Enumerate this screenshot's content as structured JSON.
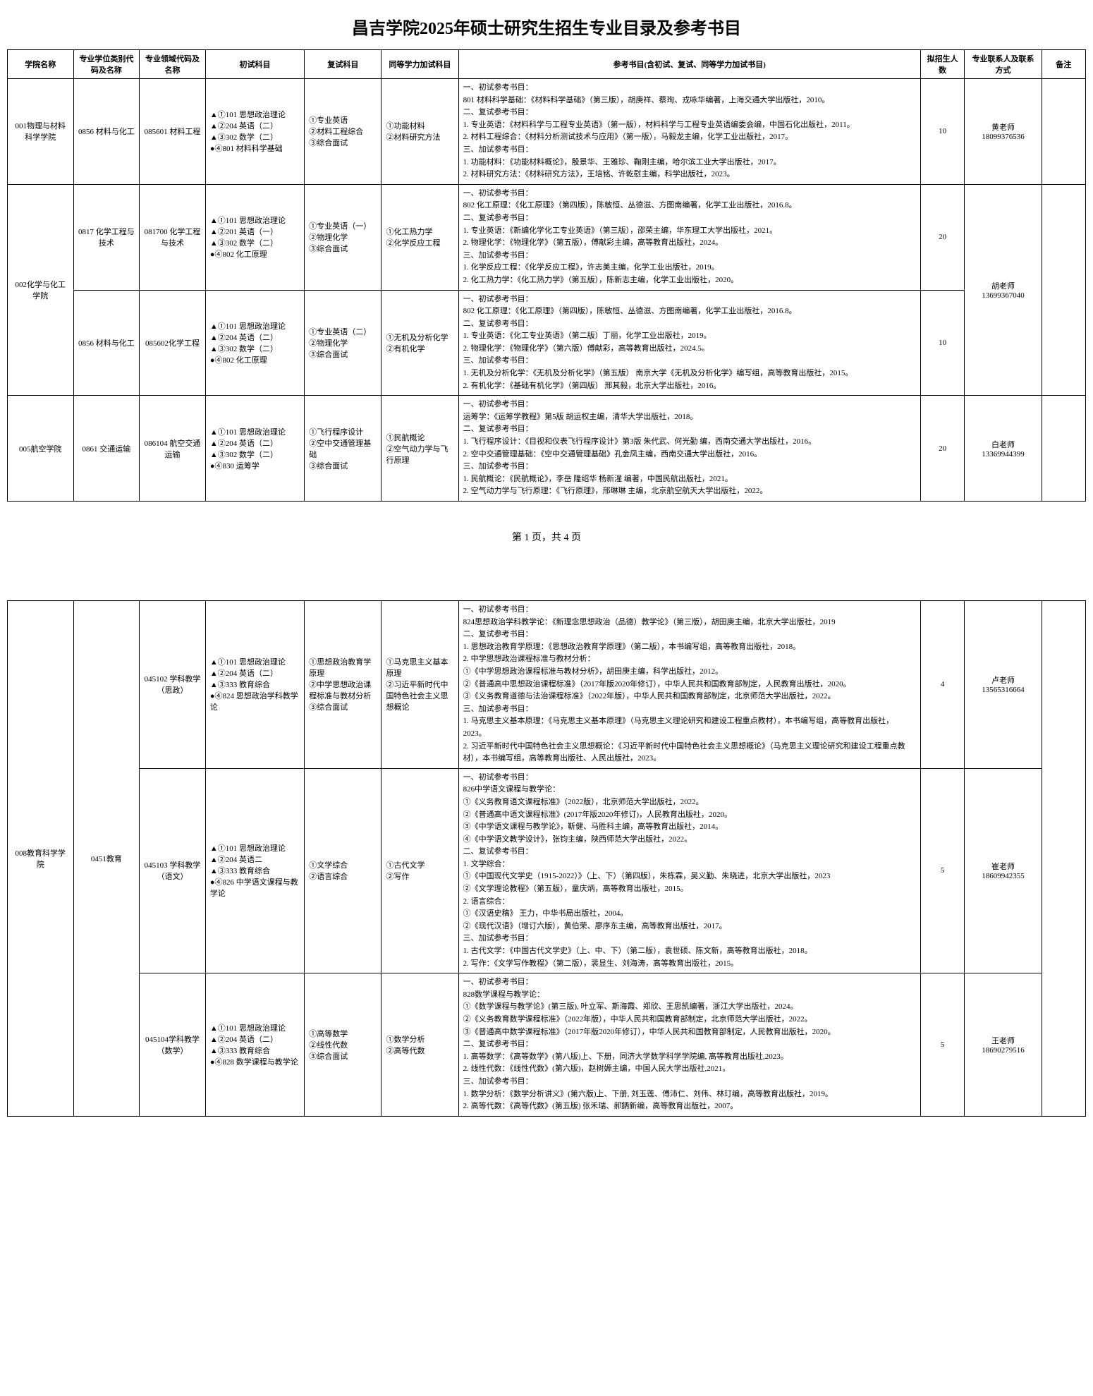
{
  "title": "昌吉学院2025年硕士研究生招生专业目录及参考书目",
  "pager": "第 1 页，共 4 页",
  "headers": {
    "school": "学院名称",
    "degree_type": "专业学位类别代码及名称",
    "field": "专业领域代码及名称",
    "prelim": "初试科目",
    "retest": "复试科目",
    "extra": "同等学力加试科目",
    "refs": "参考书目(含初试、复试、同等学力加试书目)",
    "plan": "拟招生人数",
    "contact": "专业联系人及联系方式",
    "note": "备注"
  },
  "rows": [
    {
      "school": "001物理与材料科学学院",
      "degree": "0856 材料与化工",
      "field": "085601 材料工程",
      "prelim": "▲①101 思想政治理论\n▲②204 英语（二）\n▲③302 数学（二）\n●④801 材料科学基础",
      "retest": "①专业英语\n②材料工程综合\n③综合面试",
      "extra": "①功能材料\n②材料研究方法",
      "refs": "一、初试参考书目：\n801 材料科学基础：《材料科学基础》（第三版），胡庚祥、蔡珣、戎咏华编著，上海交通大学出版社，2010。\n二、复试参考书目：\n1. 专业英语：《材料科学与工程专业英语》（第一版），材料科学与工程专业英语编委会编，中国石化出版社，2011。\n2. 材料工程综合：《材料分析测试技术与应用》（第一版），马毅龙主编，化学工业出版社，2017。\n三、加试参考书目：\n1. 功能材料：《功能材料概论》，殷景华、王雅珍、鞠刚主编，哈尔滨工业大学出版社，2017。\n2. 材料研究方法：《材料研究方法》，王培铭、许乾慰主编，科学出版社，2023。",
      "plan": "10",
      "contact": "黄老师\n18099376536",
      "note": ""
    },
    {
      "school": "002化学与化工学院",
      "degree": "0817 化学工程与技术",
      "field": "081700 化学工程与技术",
      "prelim": "▲①101 思想政治理论\n▲②201 英语（一）\n▲③302 数学（二）\n●④802 化工原理",
      "retest": "①专业英语（一）\n②物理化学\n③综合面试",
      "extra": "①化工热力学\n②化学反应工程",
      "refs": "一、初试参考书目：\n802 化工原理：《化工原理》（第四版），陈敏恒、丛德滋、方图南编著，化学工业出版社，2016.8。\n二、复试参考书目：\n1. 专业英语：《新编化学化工专业英语》（第三版），邵荣主编，华东理工大学出版社，2021。\n2. 物理化学：《物理化学》（第五版），傅献彩主编，高等教育出版社，2024。\n三、加试参考书目：\n1. 化学反应工程：《化学反应工程》，许志美主编，化学工业出版社，2019。\n2. 化工热力学：《化工热力学》（第五版），陈新志主编，化学工业出版社，2020。",
      "plan": "20",
      "contact": "胡老师\n13699367040",
      "note": ""
    },
    {
      "school": "",
      "degree": "0856 材料与化工",
      "field": "085602化学工程",
      "prelim": "▲①101 思想政治理论\n▲②204 英语（二）\n▲③302 数学（二）\n●④802 化工原理",
      "retest": "①专业英语（二）\n②物理化学\n③综合面试",
      "extra": "①无机及分析化学\n②有机化学",
      "refs": "一、初试参考书目：\n802 化工原理：《化工原理》（第四版），陈敏恒、丛德滋、方图南编著，化学工业出版社，2016.8。\n二、复试参考书目：\n1. 专业英语：《化工专业英语》（第二版）丁丽，化学工业出版社，2019。\n2. 物理化学：《物理化学》（第六版）傅献彩，高等教育出版社，2024.5。\n三、加试参考书目：\n1. 无机及分析化学：《无机及分析化学》（第五版） 南京大学《无机及分析化学》编写组，高等教育出版社，2015。\n2. 有机化学：《基础有机化学》（第四版） 邢其毅，北京大学出版社，2016。",
      "plan": "10",
      "contact": "",
      "note": ""
    },
    {
      "school": "005航空学院",
      "degree": "0861 交通运输",
      "field": "086104 航空交通运输",
      "prelim": "▲①101 思想政治理论\n▲②204 英语（二）\n▲③302 数学（二）\n●④830 运筹学",
      "retest": "①飞行程序设计\n②空中交通管理基础\n③综合面试",
      "extra": "①民航概论\n②空气动力学与飞行原理",
      "refs": "一、初试参考书目：\n运筹学：《运筹学教程》第5版 胡运权主编，清华大学出版社，2018。\n二、复试参考书目：\n1. 飞行程序设计：《目视和仪表飞行程序设计》第3版 朱代武、何光勤 编，西南交通大学出版社，2016。\n2. 空中交通管理基础：《空中交通管理基础》孔金凤主编，西南交通大学出版社，2016。\n三、加试参考书目：\n1. 民航概论：《民航概论》，李岳 隆绍华 杨新湦 编著，中国民航出版社，2021。\n2. 空气动力学与飞行原理：《飞行原理》，邢琳琳 主编，北京航空航天大学出版社，2022。",
      "plan": "20",
      "contact": "白老师\n13369944399",
      "note": ""
    },
    {
      "school": "008教育科学学院",
      "degree": "0451教育",
      "field": "045102 学科教学（思政）",
      "prelim": "▲①101 思想政治理论\n▲②204 英语（二）\n▲③333 教育综合\n●④824 思想政治学科教学论",
      "retest": "①思想政治教育学原理\n②中学思想政治课程标准与教材分析\n③综合面试",
      "extra": "①马克思主义基本原理\n②习近平新时代中国特色社会主义思想概论",
      "refs": "一、初试参考书目：\n824思想政治学科教学论：《新理念思想政治（品德）教学论》（第三版），胡田庚主编，北京大学出版社，2019\n二、复试参考书目：\n1. 思想政治教育学原理：《思想政治教育学原理》（第二版），本书编写组，高等教育出版社，2018。\n2. 中学思想政治课程标准与教材分析：\n①《中学思想政治课程标准与教材分析》，胡田庚主编，科学出版社，2012。\n②《普通高中思想政治课程标准》（2017年版2020年修订），中华人民共和国教育部制定，人民教育出版社，2020。\n③《义务教育道德与法治课程标准》（2022年版），中华人民共和国教育部制定，北京师范大学出版社，2022。\n三、加试参考书目：\n1. 马克思主义基本原理：《马克思主义基本原理》（马克思主义理论研究和建设工程重点教材），本书编写组，高等教育出版社，2023。\n2. 习近平新时代中国特色社会主义思想概论：《习近平新时代中国特色社会主义思想概论》（马克思主义理论研究和建设工程重点教材），本书编写组，高等教育出版社、人民出版社，2023。",
      "plan": "4",
      "contact": "卢老师\n13565316664",
      "note": ""
    },
    {
      "school": "",
      "degree": "",
      "field": "045103 学科教学（语文）",
      "prelim": "▲①101 思想政治理论\n▲②204 英语二\n▲③333 教育综合\n●④826 中学语文课程与教学论",
      "retest": "①文学综合\n②语言综合",
      "extra": "①古代文学\n②写作",
      "refs": "一、初试参考书目：\n826中学语文课程与教学论：\n①《义务教育语文课程标准》（2022版），北京师范大学出版社，2022。\n②《普通高中语文课程标准》(2017年版2020年修订)，人民教育出版社，2020。\n③《中学语文课程与教学论》，靳健、马胜科主编，高等教育出版社，2014。\n④《中学语文教学设计》，张钧主编，陕西师范大学出版社，2022。\n二、复试参考书目：\n1. 文学综合：\n①《中国现代文学史（1915-2022）》（上、下）（第四版），朱栋霖，吴义勤、朱晓进，北京大学出版社，2023\n②《文学理论教程》（第五版），童庆炳，高等教育出版社，2015。\n2. 语言综合：\n①《汉语史稿》 王力，中华书局出版社，2004。\n②《现代汉语》（增订六版），黄伯荣、廖序东主编，高等教育出版社，2017。\n三、加试参考书目：\n1. 古代文学：《中国古代文学史》（上、中、下）（第二版），袁世硕、陈文新，高等教育出版社，2018。\n2. 写作：《文学写作教程》（第二版），裴显生、刘海涛，高等教育出版社，2015。",
      "plan": "5",
      "contact": "崔老师\n18609942355",
      "note": ""
    },
    {
      "school": "",
      "degree": "",
      "field": "045104学科教学（数学）",
      "prelim": "▲①101 思想政治理论\n▲②204 英语（二）\n▲③333 教育综合\n●④828 数学课程与教学论",
      "retest": "①高等数学\n②线性代数\n③综合面试",
      "extra": "①数学分析\n②高等代数",
      "refs": "一、初试参考书目：\n828数学课程与教学论：\n①《数学课程与教学论》(第三版), 叶立军、斯海霞、郑欣、王思凯编著，浙江大学出版社，2024。\n②《义务教育数学课程标准》（2022年版），中华人民共和国教育部制定，北京师范大学出版社，2022。\n③《普通高中数学课程标准》（2017年版2020年修订），中华人民共和国教育部制定，人民教育出版社，2020。\n二、复试参考书目：\n1. 高等数学：《高等数学》(第八版)上、下册，同济大学数学科学学院编, 高等教育出版社,2023。\n2. 线性代数：《线性代数》(第六版)，赵树嫄主编，中国人民大学出版社,2021。\n三、加试参考书目：\n1. 数学分析：《数学分析讲义》(第六版)上、下册, 刘玉莲、傅沛仁、刘伟、林玎编，高等教育出版社，2019。\n2. 高等代数：《高等代数》(第五版) 张禾瑞、郝鈵新编，高等教育出版社，2007。",
      "plan": "5",
      "contact": "王老师\n18690279516",
      "note": ""
    }
  ]
}
